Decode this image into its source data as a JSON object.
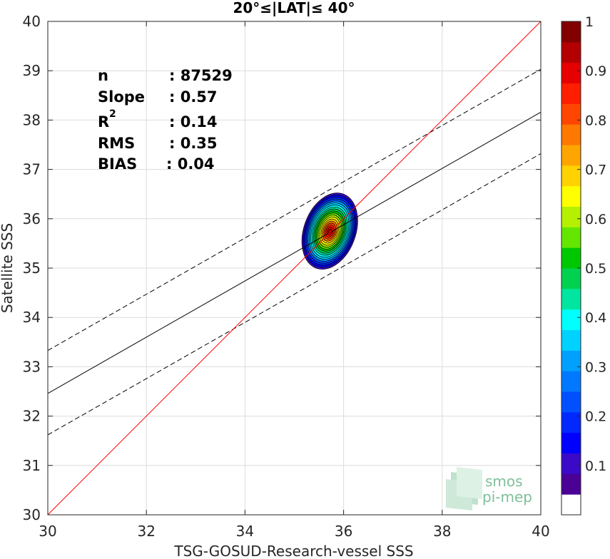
{
  "chart_data": {
    "type": "scatter",
    "title": "20°≤|LAT|≤ 40°",
    "xlabel": "TSG-GOSUD-Research-vessel SSS",
    "ylabel": "Satellite SSS",
    "xlim": [
      30,
      40
    ],
    "ylim": [
      30,
      40
    ],
    "xticks": [
      30,
      32,
      34,
      36,
      38,
      40
    ],
    "yticks": [
      30,
      31,
      32,
      33,
      34,
      35,
      36,
      37,
      38,
      39,
      40
    ],
    "grid": true,
    "stats": {
      "n_label": "n",
      "n_value": ": 87529",
      "slope_label": "Slope",
      "slope_value": ": 0.57",
      "r2_label": "R",
      "r2_sup": "2",
      "r2_value": ": 0.14",
      "rms_label": "RMS",
      "rms_value": ": 0.35",
      "bias_label": "BIAS",
      "bias_value": ": 0.04"
    },
    "lines": {
      "identity": {
        "x": [
          30,
          40
        ],
        "y": [
          30,
          40
        ],
        "color": "#ff0000"
      },
      "fit": {
        "x": [
          30,
          40
        ],
        "y": [
          32.46,
          38.16
        ],
        "color": "#000000"
      },
      "upper_band": {
        "x": [
          30,
          40
        ],
        "y": [
          33.33,
          39.03
        ],
        "style": "dashed"
      },
      "lower_band": {
        "x": [
          30,
          40
        ],
        "y": [
          31.62,
          37.32
        ],
        "style": "dashed"
      }
    },
    "density_contours": {
      "center": [
        35.72,
        35.75
      ],
      "levels": [
        0.05,
        0.1,
        0.15,
        0.2,
        0.25,
        0.3,
        0.35,
        0.4,
        0.45,
        0.5,
        0.55,
        0.6,
        0.65,
        0.7,
        0.75,
        0.8,
        0.85,
        0.9,
        0.95
      ],
      "outer_extent_x": [
        35.1,
        36.15
      ],
      "outer_extent_y": [
        34.95,
        36.55
      ]
    },
    "colorbar": {
      "range": [
        0,
        1
      ],
      "ticks": [
        0.1,
        0.2,
        0.3,
        0.4,
        0.5,
        0.6,
        0.7,
        0.8,
        0.9,
        1
      ],
      "tick_labels": [
        "0.1",
        "0.2",
        "0.3",
        "0.4",
        "0.5",
        "0.6",
        "0.7",
        "0.8",
        "0.9",
        "1"
      ],
      "colors": [
        "#ffffff",
        "#4b0096",
        "#3a0ac8",
        "#0000ff",
        "#0028ff",
        "#0050ff",
        "#0078ff",
        "#00a0ff",
        "#00d2ff",
        "#00ffff",
        "#00e6a0",
        "#00d250",
        "#00c800",
        "#64e600",
        "#b4f000",
        "#ffff00",
        "#ffd200",
        "#ffa500",
        "#ff7800",
        "#ff4600",
        "#ff1e00",
        "#e60000",
        "#b40000",
        "#820000"
      ]
    },
    "logo": {
      "line1": "smos",
      "line2": "pi-mep"
    }
  }
}
